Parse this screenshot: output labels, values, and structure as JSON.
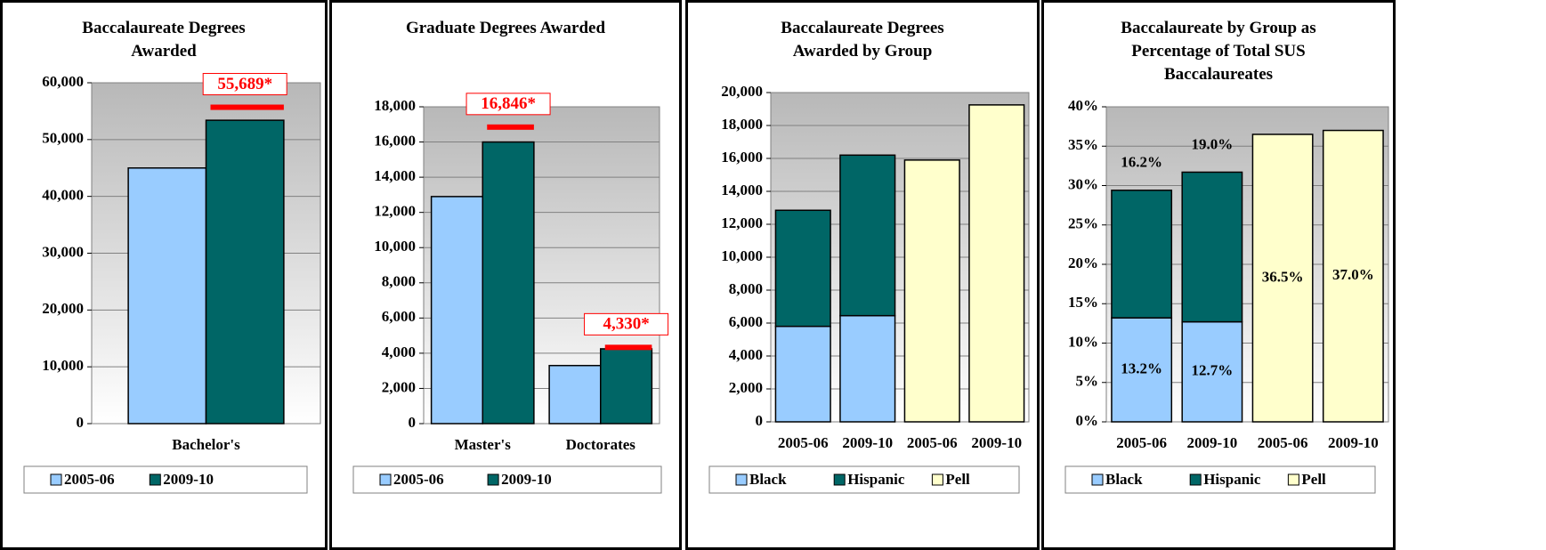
{
  "chart_data": [
    {
      "type": "bar",
      "title": "Baccalaureate Degrees Awarded",
      "categories": [
        "Bachelor's"
      ],
      "series": [
        {
          "name": "2005-06",
          "color": "#99ccff",
          "values": [
            45000
          ]
        },
        {
          "name": "2009-10",
          "color": "#006666",
          "values": [
            53400
          ]
        }
      ],
      "targets": {
        "values": [
          55689
        ],
        "value_labels": [
          "55,689*"
        ],
        "color": "#ff0000"
      },
      "ylim": [
        0,
        60000
      ],
      "yticks": [
        0,
        {
          "value": 10000,
          "label": "10,000"
        },
        {
          "value": 20000,
          "label": "20,000"
        },
        {
          "value": 30000,
          "label": "30,000"
        },
        {
          "value": 40000,
          "label": "40,000"
        },
        {
          "value": 50000,
          "label": "50,000"
        },
        {
          "value": 60000,
          "label": "60,000"
        }
      ],
      "grid": true,
      "legend": "bottom"
    },
    {
      "type": "bar",
      "title": "Graduate Degrees Awarded",
      "categories": [
        "Master's",
        "Doctorates"
      ],
      "series": [
        {
          "name": "2005-06",
          "color": "#99ccff",
          "values": [
            12900,
            3300
          ]
        },
        {
          "name": "2009-10",
          "color": "#006666",
          "values": [
            16000,
            4250
          ]
        }
      ],
      "targets": {
        "values": [
          16846,
          4330
        ],
        "value_labels": [
          "16,846*",
          "4,330*"
        ],
        "color": "#ff0000"
      },
      "ylim": [
        0,
        18000
      ],
      "yticks": [
        0,
        {
          "value": 2000,
          "label": "2,000"
        },
        {
          "value": 4000,
          "label": "4,000"
        },
        {
          "value": 6000,
          "label": "6,000"
        },
        {
          "value": 8000,
          "label": "8,000"
        },
        {
          "value": 10000,
          "label": "10,000"
        },
        {
          "value": 12000,
          "label": "12,000"
        },
        {
          "value": 14000,
          "label": "14,000"
        },
        {
          "value": 16000,
          "label": "16,000"
        },
        {
          "value": 18000,
          "label": "18,000"
        }
      ],
      "grid": true,
      "legend": "bottom"
    },
    {
      "type": "stacked_bar",
      "title": "Baccalaureate Degrees Awarded by Group",
      "categories": [
        "2005-06",
        "2009-10",
        "2005-06",
        "2009-10"
      ],
      "series": [
        {
          "name": "Black",
          "color": "#99ccff",
          "values": [
            5800,
            6450,
            null,
            null
          ]
        },
        {
          "name": "Hispanic",
          "color": "#006666",
          "values": [
            7050,
            9750,
            null,
            null
          ]
        },
        {
          "name": "Pell",
          "color": "#ffffcc",
          "values": [
            null,
            null,
            15900,
            19250
          ]
        }
      ],
      "ylim": [
        0,
        20000
      ],
      "yticks": [
        0,
        {
          "value": 2000,
          "label": "2,000"
        },
        {
          "value": 4000,
          "label": "4,000"
        },
        {
          "value": 6000,
          "label": "6,000"
        },
        {
          "value": 8000,
          "label": "8,000"
        },
        {
          "value": 10000,
          "label": "10,000"
        },
        {
          "value": 12000,
          "label": "12,000"
        },
        {
          "value": 14000,
          "label": "14,000"
        },
        {
          "value": 16000,
          "label": "16,000"
        },
        {
          "value": 18000,
          "label": "18,000"
        },
        {
          "value": 20000,
          "label": "20,000"
        }
      ],
      "grid": true,
      "legend": "bottom"
    },
    {
      "type": "stacked_bar",
      "title": "Baccalaureate by Group as Percentage of Total SUS Baccalaureates",
      "categories": [
        "2005-06",
        "2009-10",
        "2005-06",
        "2009-10"
      ],
      "series": [
        {
          "name": "Black",
          "color": "#99ccff",
          "values": [
            13.2,
            12.7,
            null,
            null
          ],
          "value_labels": [
            "13.2%",
            "12.7%",
            null,
            null
          ]
        },
        {
          "name": "Hispanic",
          "color": "#006666",
          "values": [
            16.2,
            19.0,
            null,
            null
          ],
          "value_labels": [
            "16.2%",
            "19.0%",
            null,
            null
          ]
        },
        {
          "name": "Pell",
          "color": "#ffffcc",
          "values": [
            null,
            null,
            36.5,
            37.0
          ],
          "value_labels": [
            null,
            null,
            "36.5%",
            "37.0%"
          ]
        }
      ],
      "ylim": [
        0,
        40
      ],
      "yticks": [
        {
          "value": 0,
          "label": "0%"
        },
        {
          "value": 5,
          "label": "5%"
        },
        {
          "value": 10,
          "label": "10%"
        },
        {
          "value": 15,
          "label": "15%"
        },
        {
          "value": 20,
          "label": "20%"
        },
        {
          "value": 25,
          "label": "25%"
        },
        {
          "value": 30,
          "label": "30%"
        },
        {
          "value": 35,
          "label": "35%"
        },
        {
          "value": 40,
          "label": "40%"
        }
      ],
      "grid": true,
      "legend": "bottom"
    }
  ]
}
